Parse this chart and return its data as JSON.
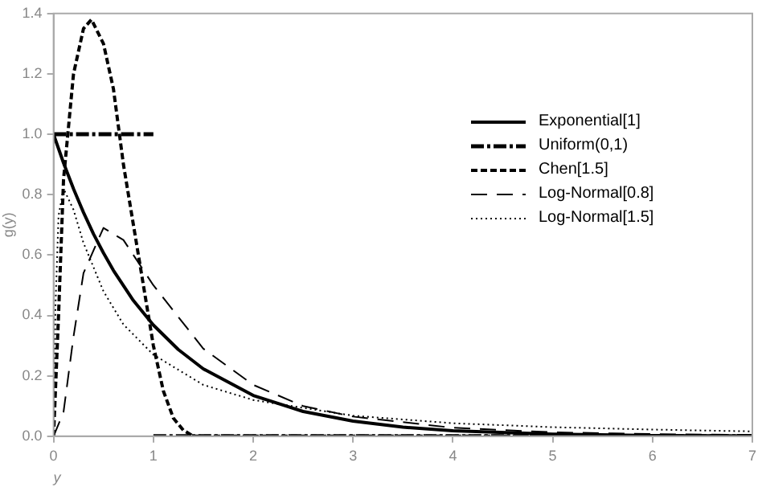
{
  "chart_data": {
    "type": "line",
    "xlabel": "y",
    "ylabel": "g(y)",
    "xlim": [
      0,
      7
    ],
    "ylim": [
      0,
      1.4
    ],
    "xticks": [
      0,
      1,
      2,
      3,
      4,
      5,
      6,
      7
    ],
    "yticks": [
      {
        "value": 0,
        "label": "0.0"
      },
      {
        "value": 0.2,
        "label": "0.2"
      },
      {
        "value": 0.4,
        "label": "0.4"
      },
      {
        "value": 0.6,
        "label": "0.6"
      },
      {
        "value": 0.8,
        "label": "0.8"
      },
      {
        "value": 1,
        "label": "1.0"
      },
      {
        "value": 1.2,
        "label": "1.2"
      },
      {
        "value": 1.4,
        "label": "1.4"
      }
    ],
    "grid": false,
    "legend": "top right",
    "marker": "none",
    "series": [
      {
        "name": "Exponential[1]",
        "color": "#000000",
        "line_style": "solid",
        "x": [
          0,
          0.1,
          0.2,
          0.3,
          0.4,
          0.5,
          0.6,
          0.8,
          1,
          1.25,
          1.5,
          2,
          2.5,
          3,
          3.5,
          4,
          5,
          6,
          7
        ],
        "values": [
          1,
          0.905,
          0.819,
          0.741,
          0.67,
          0.607,
          0.549,
          0.449,
          0.368,
          0.287,
          0.223,
          0.135,
          0.082,
          0.05,
          0.03,
          0.018,
          0.007,
          0.002,
          0.001
        ]
      },
      {
        "name": "Uniform(0,1)",
        "color": "#000000",
        "line_style": "dashed",
        "x": [
          0,
          1
        ],
        "values": [
          1,
          1
        ]
      },
      {
        "color": "#000000",
        "line_style": "dashed",
        "x": [
          1,
          7
        ],
        "values": [
          0,
          0
        ]
      },
      {
        "name": "Chen[1.5]",
        "color": "#000000",
        "line_style": "dashed",
        "x": [
          0,
          0.05,
          0.1,
          0.2,
          0.3,
          0.38,
          0.5,
          0.6,
          0.7,
          0.8,
          0.9,
          1,
          1.1,
          1.2,
          1.3,
          1.4,
          7
        ],
        "values": [
          0,
          0.4,
          0.85,
          1.2,
          1.35,
          1.38,
          1.3,
          1.15,
          0.9,
          0.7,
          0.5,
          0.3,
          0.15,
          0.06,
          0.02,
          0,
          0
        ]
      },
      {
        "name": "Log-Normal[0.8]",
        "color": "#000000",
        "line_style": "dashed",
        "x": [
          0,
          0.1,
          0.2,
          0.3,
          0.5,
          0.7,
          0.8,
          1,
          1.5,
          2,
          2.5,
          3,
          4,
          5,
          6,
          7
        ],
        "values": [
          0,
          0.08,
          0.33,
          0.54,
          0.69,
          0.65,
          0.6,
          0.5,
          0.29,
          0.17,
          0.1,
          0.065,
          0.028,
          0.013,
          0.007,
          0.004
        ]
      },
      {
        "name": "Log-Normal[1.5]",
        "color": "#000000",
        "line_style": "dotted",
        "x": [
          0,
          0.02,
          0.05,
          0.1,
          0.2,
          0.3,
          0.5,
          0.7,
          1,
          1.5,
          2,
          3,
          4,
          5,
          6,
          7
        ],
        "values": [
          0,
          0.44,
          0.73,
          0.82,
          0.75,
          0.64,
          0.48,
          0.37,
          0.27,
          0.17,
          0.12,
          0.068,
          0.043,
          0.03,
          0.022,
          0.016
        ]
      }
    ]
  }
}
